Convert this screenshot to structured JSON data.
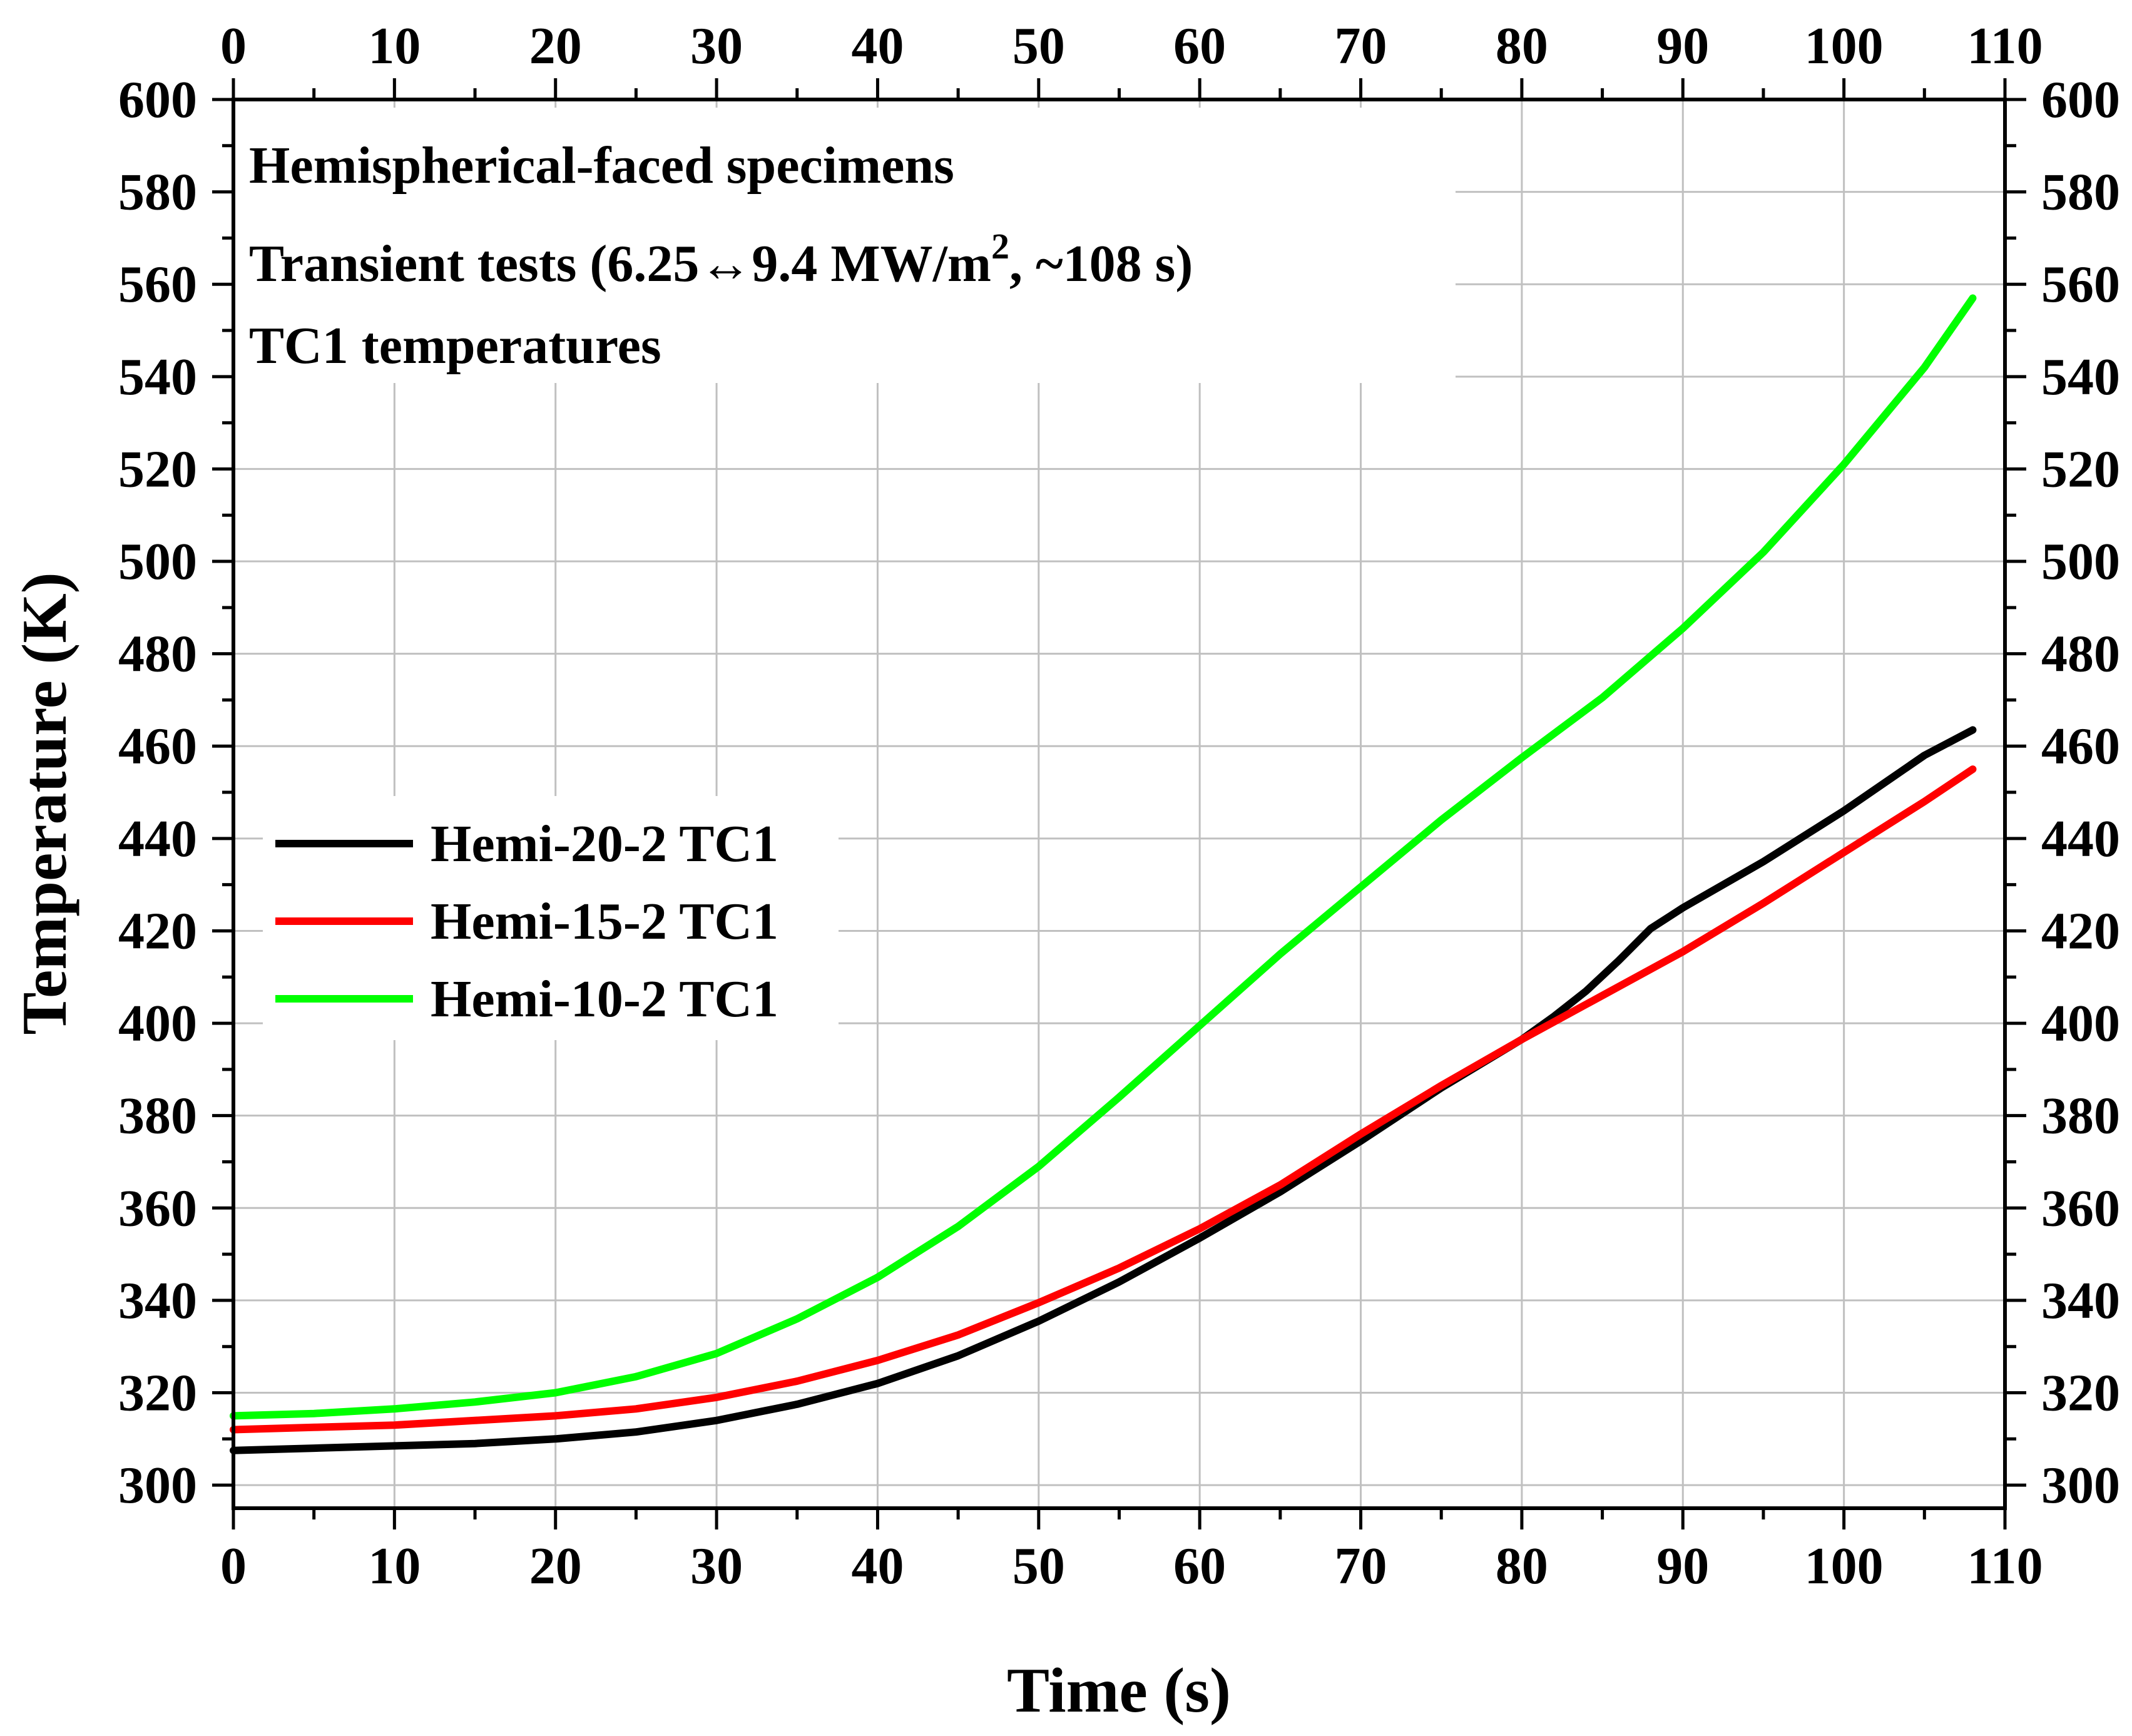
{
  "chart_data": {
    "type": "line",
    "annotation": {
      "line1": "Hemispherical-faced specimens",
      "line2_prefix": "Transient tests (6.25↔9.4 MW/m",
      "line2_sup": "2",
      "line2_suffix": ", ~108 s)",
      "line3": "TC1 temperatures"
    },
    "xlabel": "Time (s)",
    "ylabel": "Temperature (K)",
    "xlim": [
      0,
      110
    ],
    "ylim": [
      295,
      600
    ],
    "x_ticks": [
      "0",
      "10",
      "20",
      "30",
      "40",
      "50",
      "60",
      "70",
      "80",
      "90",
      "100",
      "110"
    ],
    "y_ticks": [
      "300",
      "320",
      "340",
      "360",
      "380",
      "400",
      "420",
      "440",
      "460",
      "480",
      "500",
      "520",
      "540",
      "560",
      "580",
      "600"
    ],
    "x_major_values": [
      0,
      10,
      20,
      30,
      40,
      50,
      60,
      70,
      80,
      90,
      100,
      110
    ],
    "y_major_values": [
      300,
      320,
      340,
      360,
      380,
      400,
      420,
      440,
      460,
      480,
      500,
      520,
      540,
      560,
      580,
      600
    ],
    "grid": true,
    "legend_position": "center-left",
    "series": [
      {
        "name": "Hemi-20-2 TC1",
        "color": "#000000",
        "x": [
          0,
          5,
          10,
          15,
          20,
          25,
          30,
          35,
          40,
          45,
          50,
          55,
          60,
          65,
          70,
          75,
          80,
          82,
          84,
          86,
          88,
          90,
          95,
          100,
          105,
          108
        ],
        "y": [
          307.5,
          308,
          308.5,
          309,
          310,
          311.5,
          314,
          317.5,
          322,
          328,
          335.5,
          344,
          353.5,
          363.5,
          374.5,
          386,
          396.5,
          401.5,
          407,
          413.5,
          420.5,
          425,
          435,
          446,
          458,
          463.5
        ]
      },
      {
        "name": "Hemi-15-2 TC1",
        "color": "#ff0000",
        "x": [
          0,
          5,
          10,
          15,
          20,
          25,
          30,
          35,
          40,
          45,
          50,
          55,
          60,
          65,
          70,
          75,
          80,
          85,
          90,
          95,
          100,
          105,
          108
        ],
        "y": [
          312,
          312.5,
          313,
          314,
          315,
          316.5,
          319,
          322.5,
          327,
          332.5,
          339.5,
          347,
          355.5,
          365,
          376,
          386.5,
          396.5,
          406,
          415.5,
          426,
          437,
          448,
          455
        ]
      },
      {
        "name": "Hemi-10-2 TC1",
        "color": "#00ff00",
        "x": [
          0,
          5,
          10,
          15,
          20,
          25,
          30,
          35,
          40,
          45,
          50,
          55,
          60,
          65,
          70,
          75,
          80,
          85,
          90,
          95,
          100,
          105,
          108
        ],
        "y": [
          315,
          315.5,
          316.5,
          318,
          320,
          323.5,
          328.5,
          336,
          345,
          356,
          369,
          384,
          399.5,
          415,
          429.5,
          444,
          457.5,
          470.5,
          485.5,
          502,
          521,
          542,
          557
        ]
      }
    ]
  }
}
